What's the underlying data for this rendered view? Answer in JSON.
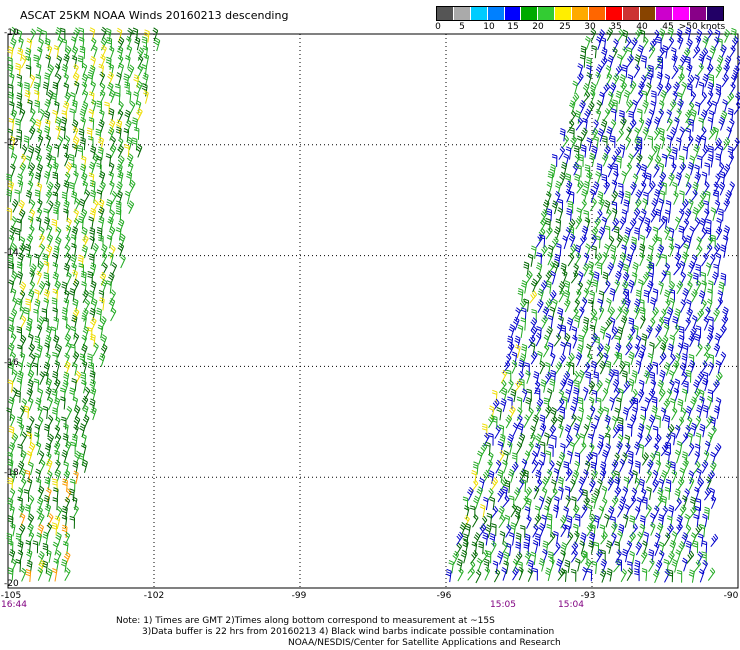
{
  "title": "ASCAT 25KM NOAA Winds 20160213 descending",
  "legend": {
    "unit_label": ">50 knots",
    "tick_labels": [
      "0",
      "5",
      "10",
      "15",
      "20",
      "25",
      "30",
      "35",
      "40",
      "45",
      ">50 knots"
    ],
    "colors": [
      "#555555",
      "#aaaaaa",
      "#00ccff",
      "#0080ff",
      "#0000ff",
      "#00aa00",
      "#33cc33",
      "#ffee00",
      "#ffaa00",
      "#ff6600",
      "#ff0000",
      "#cc3333",
      "#884400",
      "#cc00cc",
      "#ff00ff",
      "#880088",
      "#220066"
    ]
  },
  "map": {
    "lat_labels": [
      "-10",
      "-12",
      "-14",
      "-16",
      "-18",
      "-20"
    ],
    "lon_labels": [
      "-105",
      "-102",
      "-99",
      "-96",
      "-93",
      "-90"
    ],
    "lat_range": [
      -20,
      -10
    ],
    "lon_range": [
      -105,
      -90
    ],
    "time_labels": [
      {
        "text": "16:44",
        "lon": -105
      },
      {
        "text": "15:05",
        "lon": -94.4
      },
      {
        "text": "15:04",
        "lon": -93.6
      }
    ],
    "barb_colors": {
      "green": "#22aa22",
      "dark_green": "#006600",
      "blue": "#0000cc",
      "yellow": "#eedd00",
      "orange": "#ff9900"
    }
  },
  "notes": {
    "line1": "Note: 1) Times are GMT 2)Times along bottom correspond to measurement at ~15S",
    "line2": "3)Data buffer is 22 hrs from 20160213 4) Black wind barbs indicate possible contamination",
    "line3": "NOAA/NESDIS/Center for Satellite Applications and Research"
  }
}
